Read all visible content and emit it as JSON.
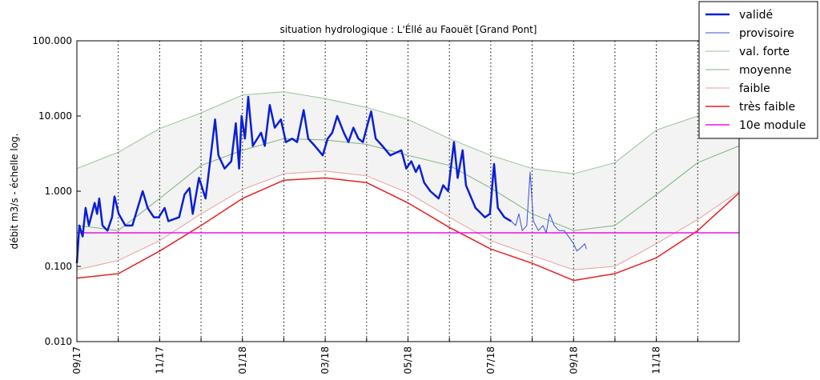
{
  "chart_data": {
    "type": "line",
    "title": "situation hydrologique : L'Éllé au Faouët [Grand Pont]",
    "y_label": "débit m3/s - échelle log.",
    "yscale": "log",
    "ylim": [
      0.01,
      100
    ],
    "yticks": [
      {
        "value": 100,
        "label": "100.000"
      },
      {
        "value": 10,
        "label": "10.000"
      },
      {
        "value": 1,
        "label": "1.000"
      },
      {
        "value": 0.1,
        "label": "0.100"
      },
      {
        "value": 0.01,
        "label": "0.010"
      }
    ],
    "xlim": [
      0,
      16
    ],
    "xticks": [
      {
        "value": 0,
        "label": "09/17"
      },
      {
        "value": 1,
        "label": null
      },
      {
        "value": 2,
        "label": "11/17"
      },
      {
        "value": 3,
        "label": null
      },
      {
        "value": 4,
        "label": "01/18"
      },
      {
        "value": 5,
        "label": null
      },
      {
        "value": 6,
        "label": "03/18"
      },
      {
        "value": 7,
        "label": null
      },
      {
        "value": 8,
        "label": "05/18"
      },
      {
        "value": 9,
        "label": null
      },
      {
        "value": 10,
        "label": "07/18"
      },
      {
        "value": 11,
        "label": null
      },
      {
        "value": 12,
        "label": "09/18"
      },
      {
        "value": 13,
        "label": null
      },
      {
        "value": 14,
        "label": "11/18"
      },
      {
        "value": 15,
        "label": null
      }
    ],
    "grid": true,
    "legend": "upper right",
    "fill_between": [
      "val. forte",
      "faible"
    ],
    "fill_color": "#f2f3f2",
    "series": [
      {
        "name": "validé",
        "color": "#0a1fd6",
        "linewidth": 2.5,
        "x": [
          0,
          0.06,
          0.14,
          0.21,
          0.29,
          0.43,
          0.49,
          0.54,
          0.62,
          0.74,
          0.85,
          0.91,
          1.01,
          1.17,
          1.34,
          1.59,
          1.71,
          1.86,
          1.98,
          2.12,
          2.21,
          2.47,
          2.6,
          2.72,
          2.8,
          2.95,
          3.11,
          3.22,
          3.34,
          3.42,
          3.57,
          3.73,
          3.84,
          3.92,
          3.98,
          4.06,
          4.14,
          4.25,
          4.45,
          4.54,
          4.66,
          4.78,
          4.93,
          5.05,
          5.2,
          5.32,
          5.48,
          5.59,
          5.75,
          5.94,
          6.06,
          6.17,
          6.29,
          6.45,
          6.56,
          6.68,
          6.8,
          6.91,
          7.03,
          7.11,
          7.22,
          7.38,
          7.57,
          7.84,
          7.96,
          8.08,
          8.19,
          8.27,
          8.39,
          8.54,
          8.74,
          8.85,
          8.97,
          9.11,
          9.2,
          9.32,
          9.4,
          9.63,
          9.86,
          9.98,
          10.08,
          10.17,
          10.33,
          10.49
        ],
        "values": [
          0.11,
          0.35,
          0.25,
          0.6,
          0.35,
          0.7,
          0.5,
          0.8,
          0.35,
          0.3,
          0.45,
          0.85,
          0.5,
          0.35,
          0.35,
          1.0,
          0.6,
          0.45,
          0.45,
          0.6,
          0.4,
          0.45,
          0.9,
          1.1,
          0.5,
          1.5,
          0.8,
          2.5,
          9,
          3,
          2,
          2.5,
          8,
          2,
          10,
          5,
          18,
          4,
          6,
          4,
          14,
          7,
          9,
          4.5,
          5,
          4.5,
          12,
          5,
          4,
          3,
          5,
          6,
          10,
          6,
          4.5,
          7,
          5,
          4.5,
          8,
          11.5,
          5,
          4,
          3,
          3.5,
          2,
          2.5,
          1.8,
          2.2,
          1.3,
          1.0,
          0.8,
          1.2,
          1.0,
          4.5,
          1.5,
          3.5,
          1.2,
          0.6,
          0.45,
          0.5,
          2.3,
          0.6,
          0.45,
          0.4
        ]
      },
      {
        "name": "provisoire",
        "color": "#3b4fe0",
        "linewidth": 1,
        "x": [
          10.49,
          10.6,
          10.68,
          10.76,
          10.87,
          10.95,
          11.03,
          11.15,
          11.26,
          11.34,
          11.42,
          11.53,
          11.65,
          11.77,
          11.88,
          12.0,
          12.08,
          12.19,
          12.27,
          12.31
        ],
        "values": [
          0.4,
          0.35,
          0.5,
          0.3,
          0.35,
          1.8,
          0.4,
          0.3,
          0.35,
          0.28,
          0.5,
          0.35,
          0.3,
          0.3,
          0.25,
          0.2,
          0.16,
          0.18,
          0.2,
          0.17
        ]
      },
      {
        "name": "val. forte",
        "color": "#9cc29c",
        "linewidth": 1,
        "x": [
          0,
          1,
          2,
          3,
          4,
          5,
          6,
          7,
          8,
          9,
          10,
          11,
          12,
          13,
          14,
          15,
          16
        ],
        "values": [
          2.0,
          3.3,
          6.8,
          11,
          19,
          21,
          17,
          13,
          9,
          5,
          3,
          2,
          1.7,
          2.4,
          6.5,
          10,
          16
        ]
      },
      {
        "name": "moyenne",
        "color": "#7fb27f",
        "linewidth": 1,
        "x": [
          0,
          1,
          2,
          3,
          4,
          5,
          6,
          7,
          8,
          9,
          10,
          11,
          12,
          13,
          14,
          15,
          16
        ],
        "values": [
          0.35,
          0.3,
          0.8,
          2.2,
          3.5,
          5,
          4.8,
          4.2,
          3,
          2.2,
          1.1,
          0.5,
          0.3,
          0.35,
          0.9,
          2.4,
          4
        ]
      },
      {
        "name": "faible",
        "color": "#e8a0a0",
        "linewidth": 1,
        "x": [
          0,
          1,
          2,
          3,
          4,
          5,
          6,
          7,
          8,
          9,
          10,
          11,
          12,
          13,
          14,
          15,
          16
        ],
        "values": [
          0.09,
          0.12,
          0.22,
          0.5,
          1.05,
          1.7,
          1.85,
          1.6,
          0.95,
          0.45,
          0.22,
          0.14,
          0.09,
          0.1,
          0.2,
          0.42,
          1.0
        ]
      },
      {
        "name": "très faible",
        "color": "#e82020",
        "linewidth": 1.5,
        "x": [
          0,
          1,
          2,
          3,
          4,
          5,
          6,
          7,
          8,
          9,
          10,
          11,
          12,
          13,
          14,
          15,
          16
        ],
        "values": [
          0.07,
          0.08,
          0.16,
          0.35,
          0.8,
          1.4,
          1.5,
          1.3,
          0.7,
          0.33,
          0.17,
          0.11,
          0.065,
          0.08,
          0.13,
          0.3,
          0.95
        ]
      },
      {
        "name": "10e module",
        "color": "#ee10ee",
        "linewidth": 1.5,
        "x": [
          0,
          16
        ],
        "values": [
          0.28,
          0.28
        ]
      }
    ]
  }
}
